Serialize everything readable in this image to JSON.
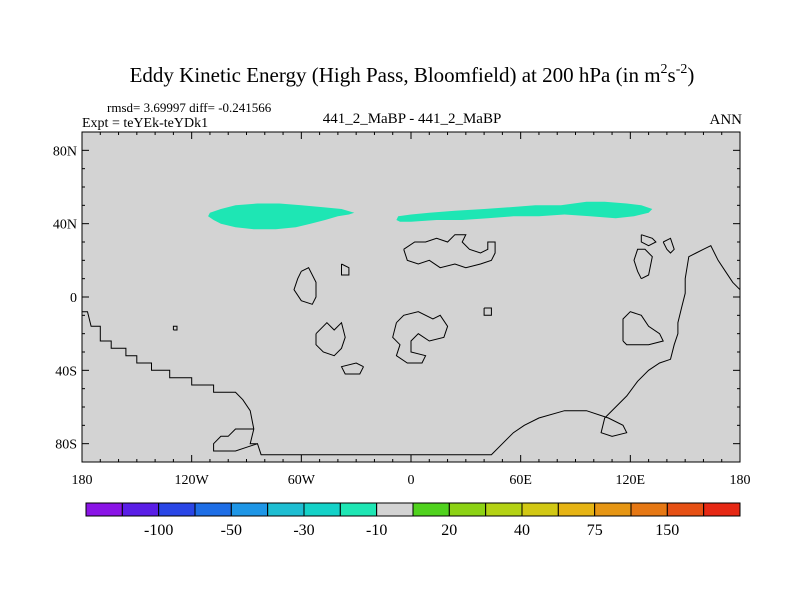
{
  "chart_data": {
    "type": "contour-map",
    "title": "Eddy Kinetic Energy (High Pass, Bloomfield) at 200 hPa (in m",
    "title_unit_sup1": "2",
    "title_unit_mid": "s",
    "title_unit_sup2": "-2",
    "title_close": ")",
    "stats": "rmsd= 3.69997 diff= -0.241566",
    "experiment": "Expt = teYEk-teYDk1",
    "case_label": "441_2_MaBP - 441_2_MaBP",
    "season": "ANN",
    "x_ticks": [
      {
        "value": -180,
        "label": "180"
      },
      {
        "value": -120,
        "label": "120W"
      },
      {
        "value": -60,
        "label": "60W"
      },
      {
        "value": 0,
        "label": "0"
      },
      {
        "value": 60,
        "label": "60E"
      },
      {
        "value": 120,
        "label": "120E"
      },
      {
        "value": 180,
        "label": "180"
      }
    ],
    "y_ticks": [
      {
        "value": 80,
        "label": "80N"
      },
      {
        "value": 40,
        "label": "40N"
      },
      {
        "value": 0,
        "label": "0"
      },
      {
        "value": -40,
        "label": "40S"
      },
      {
        "value": -80,
        "label": "80S"
      }
    ],
    "xlim": [
      -180,
      180
    ],
    "ylim": [
      -90,
      90
    ],
    "background_color": "#d3d3d3",
    "colorbar": {
      "colors": [
        "#8a14e6",
        "#5a1ee6",
        "#2a46e6",
        "#1e6ee6",
        "#1e96e6",
        "#1ebed2",
        "#14d2c8",
        "#1ee6b4",
        "#d3d3d3",
        "#50d21e",
        "#8cd214",
        "#b4d214",
        "#d2c814",
        "#e6b414",
        "#e69614",
        "#e67814",
        "#e65014",
        "#e62814"
      ],
      "labels": [
        {
          "after_box": 2,
          "text": "-100"
        },
        {
          "after_box": 4,
          "text": "-50"
        },
        {
          "after_box": 6,
          "text": "-30"
        },
        {
          "after_box": 8,
          "text": "-10"
        },
        {
          "after_box": 10,
          "text": "20"
        },
        {
          "after_box": 12,
          "text": "40"
        },
        {
          "after_box": 14,
          "text": "75"
        },
        {
          "after_box": 16,
          "text": "150"
        }
      ]
    },
    "regions": [
      {
        "name": "anomaly-northwest",
        "level": "-10",
        "color": "#1ee6b4",
        "points": [
          [
            -110,
            46
          ],
          [
            -104,
            48
          ],
          [
            -96,
            50
          ],
          [
            -84,
            51
          ],
          [
            -72,
            51
          ],
          [
            -60,
            50
          ],
          [
            -48,
            49
          ],
          [
            -38,
            48
          ],
          [
            -31,
            46
          ],
          [
            -34,
            45
          ],
          [
            -40,
            44
          ],
          [
            -47,
            42
          ],
          [
            -55,
            40
          ],
          [
            -63,
            38
          ],
          [
            -74,
            37
          ],
          [
            -86,
            37
          ],
          [
            -96,
            38
          ],
          [
            -104,
            40
          ],
          [
            -108,
            42
          ],
          [
            -111,
            44
          ]
        ]
      },
      {
        "name": "anomaly-northeast",
        "level": "-10",
        "color": "#1ee6b4",
        "points": [
          [
            -7,
            44
          ],
          [
            0,
            45
          ],
          [
            10,
            46
          ],
          [
            24,
            47
          ],
          [
            40,
            48
          ],
          [
            54,
            49
          ],
          [
            68,
            50
          ],
          [
            82,
            50
          ],
          [
            96,
            52
          ],
          [
            106,
            52
          ],
          [
            118,
            51
          ],
          [
            126,
            50
          ],
          [
            132,
            48
          ],
          [
            130,
            46
          ],
          [
            122,
            44
          ],
          [
            112,
            43
          ],
          [
            98,
            44
          ],
          [
            84,
            45
          ],
          [
            70,
            44
          ],
          [
            56,
            44
          ],
          [
            42,
            43
          ],
          [
            28,
            42
          ],
          [
            14,
            42
          ],
          [
            0,
            41
          ],
          [
            -6,
            41
          ],
          [
            -8,
            42
          ]
        ]
      }
    ],
    "coastlines": [
      [
        [
          -180,
          -8
        ],
        [
          -177,
          -8
        ],
        [
          -175,
          -16
        ],
        [
          -170,
          -16
        ],
        [
          -170,
          -24
        ],
        [
          -164,
          -24
        ],
        [
          -164,
          -28
        ],
        [
          -156,
          -28
        ],
        [
          -156,
          -32
        ],
        [
          -150,
          -32
        ],
        [
          -150,
          -36
        ],
        [
          -142,
          -36
        ],
        [
          -142,
          -40
        ],
        [
          -132,
          -40
        ],
        [
          -132,
          -44
        ],
        [
          -120,
          -44
        ],
        [
          -120,
          -48
        ],
        [
          -108,
          -48
        ],
        [
          -108,
          -52
        ],
        [
          -96,
          -52
        ],
        [
          -92,
          -56
        ],
        [
          -88,
          -62
        ],
        [
          -86,
          -72
        ],
        [
          -88,
          -80
        ],
        [
          -84,
          -80
        ]
      ],
      [
        [
          -86,
          -72
        ],
        [
          -96,
          -72
        ],
        [
          -100,
          -76
        ],
        [
          -104,
          -76
        ],
        [
          -108,
          -80
        ],
        [
          -108,
          -84
        ],
        [
          -96,
          -84
        ],
        [
          -90,
          -82
        ],
        [
          -84,
          -80
        ],
        [
          -82,
          -86
        ],
        [
          -40,
          -86
        ],
        [
          -20,
          -86
        ],
        [
          0,
          -86
        ],
        [
          20,
          -86
        ],
        [
          34,
          -86
        ],
        [
          44,
          -86
        ],
        [
          50,
          -80
        ],
        [
          56,
          -74
        ],
        [
          62,
          -70
        ],
        [
          70,
          -66
        ],
        [
          84,
          -62
        ],
        [
          96,
          -62
        ],
        [
          108,
          -66
        ],
        [
          116,
          -70
        ],
        [
          118,
          -74
        ],
        [
          110,
          -76
        ],
        [
          104,
          -74
        ],
        [
          106,
          -66
        ],
        [
          112,
          -60
        ],
        [
          118,
          -54
        ],
        [
          124,
          -46
        ],
        [
          130,
          -40
        ],
        [
          136,
          -36
        ],
        [
          142,
          -34
        ],
        [
          144,
          -26
        ],
        [
          146,
          -20
        ],
        [
          146,
          -14
        ],
        [
          148,
          -6
        ],
        [
          150,
          2
        ],
        [
          150,
          10
        ],
        [
          152,
          22
        ],
        [
          156,
          24
        ],
        [
          160,
          26
        ],
        [
          164,
          28
        ],
        [
          168,
          20
        ],
        [
          172,
          14
        ],
        [
          176,
          8
        ],
        [
          180,
          4
        ]
      ],
      [
        [
          116,
          -24
        ],
        [
          116,
          -12
        ],
        [
          120,
          -8
        ],
        [
          126,
          -10
        ],
        [
          130,
          -16
        ],
        [
          136,
          -20
        ],
        [
          138,
          -24
        ],
        [
          130,
          -26
        ],
        [
          124,
          -26
        ],
        [
          118,
          -26
        ],
        [
          116,
          -24
        ]
      ],
      [
        [
          126,
          10
        ],
        [
          130,
          12
        ],
        [
          132,
          22
        ],
        [
          128,
          26
        ],
        [
          124,
          26
        ],
        [
          122,
          20
        ],
        [
          124,
          14
        ],
        [
          126,
          10
        ]
      ],
      [
        [
          138,
          30
        ],
        [
          142,
          32
        ],
        [
          144,
          26
        ],
        [
          142,
          24
        ],
        [
          140,
          26
        ],
        [
          138,
          30
        ]
      ],
      [
        [
          -60,
          14
        ],
        [
          -56,
          16
        ],
        [
          -52,
          8
        ],
        [
          -52,
          0
        ],
        [
          -54,
          -4
        ],
        [
          -60,
          -2
        ],
        [
          -64,
          4
        ],
        [
          -62,
          10
        ],
        [
          -60,
          14
        ]
      ],
      [
        [
          -52,
          -20
        ],
        [
          -46,
          -14
        ],
        [
          -42,
          -18
        ],
        [
          -38,
          -14
        ],
        [
          -36,
          -22
        ],
        [
          -38,
          -28
        ],
        [
          -42,
          -32
        ],
        [
          -48,
          -30
        ],
        [
          -52,
          -26
        ],
        [
          -52,
          -20
        ]
      ],
      [
        [
          -26,
          -38
        ],
        [
          -28,
          -42
        ],
        [
          -36,
          -42
        ],
        [
          -38,
          -38
        ],
        [
          -30,
          -36
        ],
        [
          -26,
          -38
        ]
      ],
      [
        [
          -8,
          -14
        ],
        [
          -4,
          -10
        ],
        [
          4,
          -8
        ],
        [
          12,
          -12
        ],
        [
          16,
          -10
        ],
        [
          20,
          -16
        ],
        [
          18,
          -22
        ],
        [
          10,
          -24
        ],
        [
          4,
          -20
        ],
        [
          0,
          -24
        ],
        [
          0,
          -30
        ],
        [
          8,
          -32
        ],
        [
          6,
          -36
        ],
        [
          -2,
          -36
        ],
        [
          -8,
          -32
        ],
        [
          -6,
          -26
        ],
        [
          -10,
          -22
        ],
        [
          -8,
          -14
        ]
      ],
      [
        [
          -4,
          26
        ],
        [
          2,
          30
        ],
        [
          8,
          30
        ],
        [
          14,
          32
        ],
        [
          20,
          30
        ],
        [
          24,
          34
        ],
        [
          30,
          34
        ],
        [
          28,
          30
        ],
        [
          32,
          26
        ],
        [
          38,
          24
        ],
        [
          42,
          26
        ],
        [
          42,
          30
        ],
        [
          46,
          30
        ],
        [
          46,
          24
        ],
        [
          44,
          20
        ],
        [
          38,
          18
        ],
        [
          30,
          16
        ],
        [
          24,
          18
        ],
        [
          16,
          16
        ],
        [
          10,
          20
        ],
        [
          4,
          18
        ],
        [
          -2,
          20
        ],
        [
          -4,
          26
        ]
      ],
      [
        [
          -38,
          18
        ],
        [
          -34,
          16
        ],
        [
          -34,
          12
        ],
        [
          -38,
          12
        ],
        [
          -38,
          18
        ]
      ],
      [
        [
          126,
          34
        ],
        [
          132,
          32
        ],
        [
          134,
          30
        ],
        [
          130,
          28
        ],
        [
          126,
          30
        ],
        [
          126,
          34
        ]
      ],
      [
        [
          40,
          -6
        ],
        [
          44,
          -6
        ],
        [
          44,
          -10
        ],
        [
          40,
          -10
        ],
        [
          40,
          -6
        ]
      ],
      [
        [
          -130,
          -18
        ],
        [
          -128,
          -18
        ],
        [
          -128,
          -16
        ],
        [
          -130,
          -16
        ],
        [
          -130,
          -18
        ]
      ]
    ]
  }
}
